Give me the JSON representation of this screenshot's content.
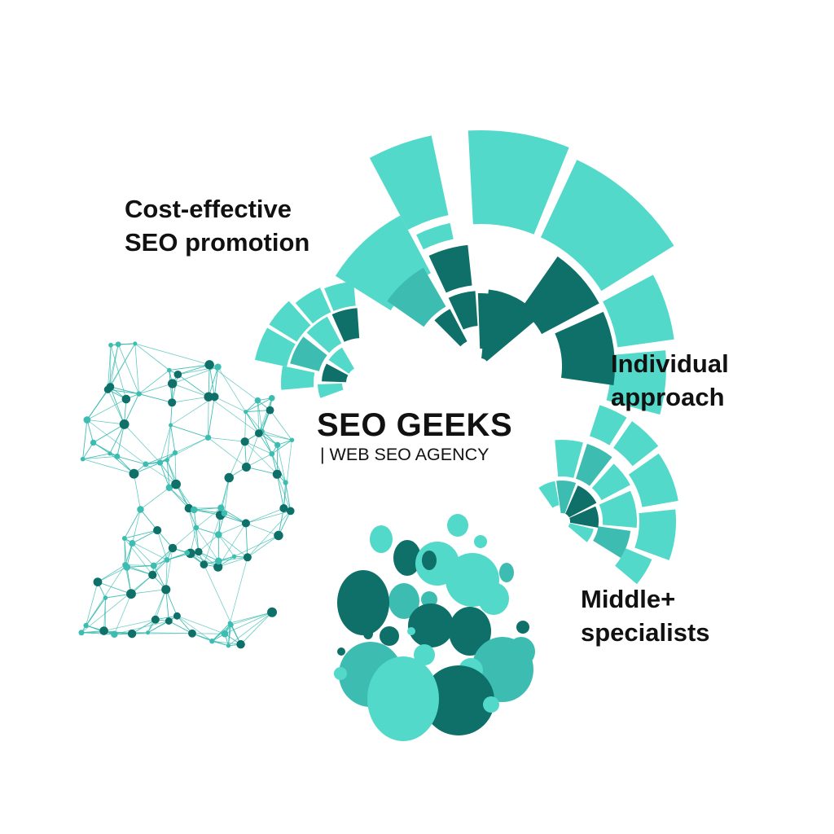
{
  "brand": {
    "title": "SEO GEEKS",
    "tagline": "| WEB SEO AGENCY"
  },
  "features": [
    {
      "line1": "Cost-effective",
      "line2": "SEO promotion"
    },
    {
      "line1": "Individual",
      "line2": "approach"
    },
    {
      "line1": "Middle+",
      "line2": "specialists"
    }
  ],
  "colors": {
    "light": "#52d9c9",
    "mid": "#3dbdb2",
    "dark": "#0e7068",
    "text": "#111111"
  },
  "graphics": [
    "fan-chart-large",
    "fan-chart-small",
    "fan-chart-right",
    "network-graph",
    "bubble-cluster"
  ]
}
